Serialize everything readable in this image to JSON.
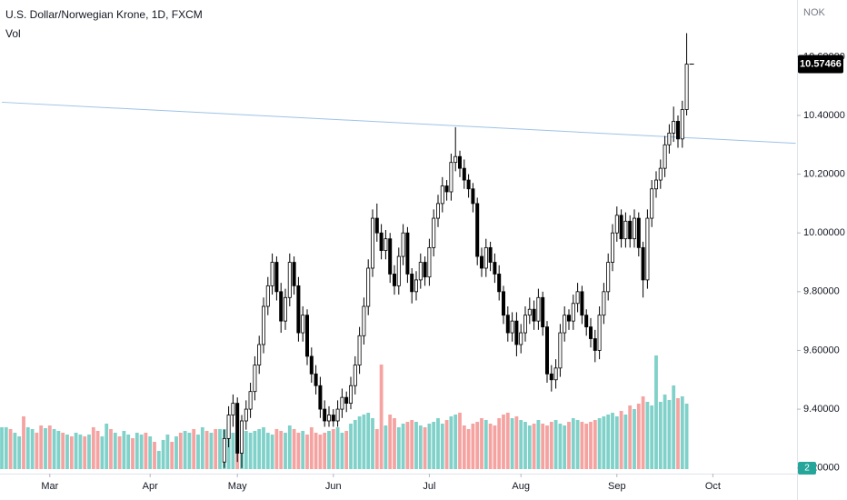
{
  "chart_data": {
    "type": "candlestick",
    "title": "U.S. Dollar/Norwegian Krone, 1D, FXCM",
    "volume_title": "Vol",
    "currency": "NOK",
    "volume_scale_label": "2",
    "ylim": [
      9.165,
      10.793
    ],
    "yticks": [
      {
        "value": 9.2,
        "label": "9.20000"
      },
      {
        "value": 9.4,
        "label": "9.40000"
      },
      {
        "value": 9.6,
        "label": "9.60000"
      },
      {
        "value": 9.8,
        "label": "9.80000"
      },
      {
        "value": 10.0,
        "label": "10.00000"
      },
      {
        "value": 10.2,
        "label": "10.20000"
      },
      {
        "value": 10.4,
        "label": "10.40000"
      },
      {
        "value": 10.6,
        "label": "10.60000"
      }
    ],
    "xticks": [
      {
        "value": 11,
        "label": "Mar"
      },
      {
        "value": 34,
        "label": "Apr"
      },
      {
        "value": 54,
        "label": "May"
      },
      {
        "value": 76,
        "label": "Jun"
      },
      {
        "value": 98,
        "label": "Jul"
      },
      {
        "value": 119,
        "label": "Aug"
      },
      {
        "value": 141,
        "label": "Sep"
      },
      {
        "value": 163,
        "label": "Oct"
      }
    ],
    "up_color": "#ffffff",
    "down_color": "#000000",
    "wick_color": "#000000",
    "trendline": {
      "color": "#9ec2e6",
      "start": [
        0,
        10.445
      ],
      "end": [
        182,
        10.305
      ]
    },
    "candles": [
      null,
      null,
      null,
      null,
      null,
      null,
      null,
      null,
      null,
      null,
      null,
      null,
      null,
      null,
      null,
      null,
      null,
      null,
      null,
      null,
      null,
      null,
      null,
      null,
      null,
      null,
      null,
      null,
      null,
      null,
      null,
      null,
      null,
      null,
      null,
      null,
      null,
      null,
      null,
      null,
      null,
      null,
      null,
      null,
      null,
      null,
      null,
      null,
      null,
      null,
      null,
      [
        9.22,
        9.33,
        9.2,
        9.3
      ],
      [
        9.3,
        9.41,
        9.27,
        9.38
      ],
      [
        9.38,
        9.45,
        9.34,
        9.42
      ],
      [
        9.42,
        9.44,
        9.22,
        9.25
      ],
      [
        9.25,
        9.38,
        9.2,
        9.36
      ],
      [
        9.36,
        9.43,
        9.33,
        9.4
      ],
      [
        9.4,
        9.49,
        9.37,
        9.46
      ],
      [
        9.46,
        9.58,
        9.43,
        9.55
      ],
      [
        9.55,
        9.65,
        9.52,
        9.62
      ],
      [
        9.62,
        9.78,
        9.59,
        9.75
      ],
      [
        9.75,
        9.85,
        9.72,
        9.82
      ],
      [
        9.82,
        9.93,
        9.79,
        9.9
      ],
      [
        9.9,
        9.92,
        9.77,
        9.8
      ],
      [
        9.8,
        9.83,
        9.66,
        9.7
      ],
      [
        9.7,
        9.81,
        9.67,
        9.78
      ],
      [
        9.78,
        9.93,
        9.75,
        9.9
      ],
      [
        9.9,
        9.92,
        9.79,
        9.82
      ],
      [
        9.82,
        9.85,
        9.63,
        9.66
      ],
      [
        9.66,
        9.75,
        9.63,
        9.72
      ],
      [
        9.72,
        9.74,
        9.55,
        9.58
      ],
      [
        9.58,
        9.61,
        9.49,
        9.52
      ],
      [
        9.52,
        9.55,
        9.45,
        9.48
      ],
      [
        9.48,
        9.51,
        9.37,
        9.4
      ],
      [
        9.4,
        9.43,
        9.34,
        9.36
      ],
      [
        9.36,
        9.41,
        9.34,
        9.38
      ],
      [
        9.38,
        9.4,
        9.34,
        9.36
      ],
      [
        9.36,
        9.43,
        9.34,
        9.4
      ],
      [
        9.4,
        9.47,
        9.37,
        9.44
      ],
      [
        9.44,
        9.46,
        9.39,
        9.42
      ],
      [
        9.42,
        9.51,
        9.4,
        9.48
      ],
      [
        9.48,
        9.58,
        9.45,
        9.55
      ],
      [
        9.55,
        9.68,
        9.52,
        9.65
      ],
      [
        9.65,
        9.78,
        9.62,
        9.75
      ],
      [
        9.75,
        9.91,
        9.72,
        9.88
      ],
      [
        9.88,
        10.08,
        9.85,
        10.05
      ],
      [
        10.05,
        10.1,
        9.97,
        10.0
      ],
      [
        10.0,
        10.03,
        9.91,
        9.94
      ],
      [
        9.94,
        10.01,
        9.91,
        9.98
      ],
      [
        9.98,
        10.0,
        9.83,
        9.86
      ],
      [
        9.86,
        9.89,
        9.79,
        9.82
      ],
      [
        9.82,
        9.95,
        9.79,
        9.92
      ],
      [
        9.92,
        10.03,
        9.89,
        10.0
      ],
      [
        10.0,
        10.02,
        9.83,
        9.86
      ],
      [
        9.86,
        9.88,
        9.76,
        9.8
      ],
      [
        9.8,
        9.87,
        9.77,
        9.84
      ],
      [
        9.84,
        9.93,
        9.81,
        9.9
      ],
      [
        9.9,
        9.92,
        9.82,
        9.85
      ],
      [
        9.85,
        9.98,
        9.82,
        9.95
      ],
      [
        9.95,
        10.08,
        9.92,
        10.05
      ],
      [
        10.05,
        10.13,
        10.02,
        10.1
      ],
      [
        10.1,
        10.19,
        10.07,
        10.16
      ],
      [
        10.16,
        10.18,
        10.11,
        10.14
      ],
      [
        10.14,
        10.27,
        10.11,
        10.24
      ],
      [
        10.24,
        10.36,
        10.21,
        10.26
      ],
      [
        10.26,
        10.28,
        10.19,
        10.22
      ],
      [
        10.22,
        10.25,
        10.15,
        10.18
      ],
      [
        10.18,
        10.2,
        10.12,
        10.15
      ],
      [
        10.15,
        10.17,
        10.07,
        10.1
      ],
      [
        10.1,
        10.12,
        9.89,
        9.92
      ],
      [
        9.92,
        9.95,
        9.85,
        9.88
      ],
      [
        9.88,
        9.98,
        9.85,
        9.95
      ],
      [
        9.95,
        9.97,
        9.87,
        9.9
      ],
      [
        9.9,
        9.93,
        9.83,
        9.86
      ],
      [
        9.86,
        9.89,
        9.77,
        9.8
      ],
      [
        9.8,
        9.82,
        9.69,
        9.72
      ],
      [
        9.72,
        9.75,
        9.63,
        9.66
      ],
      [
        9.66,
        9.73,
        9.63,
        9.7
      ],
      [
        9.7,
        9.73,
        9.58,
        9.62
      ],
      [
        9.62,
        9.69,
        9.59,
        9.66
      ],
      [
        9.66,
        9.75,
        9.63,
        9.72
      ],
      [
        9.72,
        9.78,
        9.69,
        9.74
      ],
      [
        9.74,
        9.77,
        9.67,
        9.7
      ],
      [
        9.7,
        9.81,
        9.67,
        9.78
      ],
      [
        9.78,
        9.8,
        9.65,
        9.68
      ],
      [
        9.68,
        9.7,
        9.49,
        9.52
      ],
      [
        9.52,
        9.55,
        9.46,
        9.5
      ],
      [
        9.5,
        9.57,
        9.47,
        9.54
      ],
      [
        9.54,
        9.69,
        9.51,
        9.66
      ],
      [
        9.66,
        9.75,
        9.63,
        9.72
      ],
      [
        9.72,
        9.74,
        9.67,
        9.7
      ],
      [
        9.7,
        9.79,
        9.67,
        9.76
      ],
      [
        9.76,
        9.83,
        9.73,
        9.8
      ],
      [
        9.8,
        9.82,
        9.69,
        9.72
      ],
      [
        9.72,
        9.74,
        9.65,
        9.68
      ],
      [
        9.68,
        9.71,
        9.61,
        9.64
      ],
      [
        9.64,
        9.67,
        9.56,
        9.6
      ],
      [
        9.6,
        9.75,
        9.57,
        9.72
      ],
      [
        9.72,
        9.83,
        9.69,
        9.8
      ],
      [
        9.8,
        9.93,
        9.77,
        9.9
      ],
      [
        9.9,
        10.03,
        9.87,
        10.0
      ],
      [
        10.0,
        10.09,
        9.97,
        10.06
      ],
      [
        10.06,
        10.08,
        9.95,
        9.98
      ],
      [
        9.98,
        10.07,
        9.95,
        10.04
      ],
      [
        10.04,
        10.06,
        9.95,
        9.98
      ],
      [
        9.98,
        10.08,
        9.95,
        10.05
      ],
      [
        10.05,
        10.07,
        9.92,
        9.95
      ],
      [
        9.95,
        9.97,
        9.78,
        9.84
      ],
      [
        9.84,
        10.08,
        9.81,
        10.05
      ],
      [
        10.05,
        10.18,
        10.02,
        10.15
      ],
      [
        10.15,
        10.21,
        10.12,
        10.18
      ],
      [
        10.18,
        10.25,
        10.15,
        10.22
      ],
      [
        10.22,
        10.33,
        10.19,
        10.3
      ],
      [
        10.3,
        10.37,
        10.27,
        10.34
      ],
      [
        10.34,
        10.43,
        10.31,
        10.38
      ],
      [
        10.38,
        10.4,
        10.29,
        10.32
      ],
      [
        10.32,
        10.45,
        10.29,
        10.42
      ],
      [
        10.42,
        10.68,
        10.4,
        10.57466
      ]
    ],
    "volume": {
      "up_color": "#7fd1c9",
      "down_color": "#f5a3a1",
      "vlim": [
        0,
        130
      ],
      "values": [
        46,
        46,
        44,
        40,
        36,
        58,
        46,
        44,
        40,
        48,
        45,
        48,
        44,
        42,
        40,
        38,
        36,
        40,
        38,
        36,
        38,
        46,
        42,
        36,
        50,
        44,
        40,
        36,
        42,
        38,
        34,
        40,
        38,
        40,
        36,
        30,
        20,
        32,
        38,
        30,
        36,
        40,
        42,
        40,
        44,
        38,
        46,
        42,
        40,
        44,
        44,
        44,
        50,
        40,
        60,
        36,
        42,
        40,
        42,
        44,
        46,
        40,
        38,
        44,
        42,
        40,
        48,
        44,
        40,
        42,
        38,
        46,
        40,
        38,
        40,
        42,
        44,
        46,
        40,
        42,
        50,
        54,
        58,
        60,
        62,
        56,
        44,
        115,
        48,
        60,
        56,
        46,
        50,
        52,
        54,
        52,
        48,
        46,
        50,
        52,
        56,
        50,
        54,
        58,
        60,
        62,
        48,
        44,
        50,
        52,
        56,
        54,
        50,
        48,
        56,
        60,
        62,
        56,
        58,
        54,
        52,
        48,
        50,
        54,
        50,
        48,
        52,
        54,
        50,
        48,
        52,
        56,
        54,
        52,
        50,
        52,
        54,
        56,
        58,
        60,
        62,
        58,
        64,
        60,
        70,
        66,
        72,
        80,
        74,
        70,
        125,
        74,
        82,
        76,
        92,
        78,
        80,
        72
      ],
      "up": [
        1,
        1,
        0,
        1,
        1,
        0,
        1,
        1,
        0,
        0,
        1,
        0,
        1,
        1,
        0,
        1,
        0,
        1,
        1,
        0,
        1,
        0,
        0,
        1,
        1,
        0,
        1,
        0,
        1,
        1,
        0,
        1,
        1,
        0,
        1,
        0,
        1,
        1,
        1,
        0,
        1,
        0,
        1,
        1,
        0,
        1,
        1,
        0,
        1,
        0,
        1,
        1,
        1,
        1,
        0,
        1,
        1,
        1,
        1,
        1,
        1,
        1,
        1,
        0,
        0,
        1,
        1,
        0,
        0,
        1,
        0,
        0,
        0,
        0,
        0,
        1,
        0,
        1,
        1,
        0,
        1,
        1,
        1,
        1,
        1,
        1,
        0,
        0,
        1,
        0,
        0,
        1,
        1,
        0,
        0,
        1,
        1,
        0,
        1,
        1,
        1,
        1,
        0,
        1,
        1,
        0,
        0,
        0,
        0,
        0,
        0,
        1,
        0,
        0,
        0,
        0,
        0,
        1,
        0,
        1,
        1,
        1,
        0,
        1,
        0,
        0,
        0,
        1,
        1,
        1,
        0,
        1,
        1,
        0,
        0,
        0,
        0,
        1,
        1,
        1,
        1,
        1,
        0,
        1,
        0,
        1,
        0,
        0,
        1,
        1,
        1,
        1,
        1,
        1,
        1,
        0,
        1,
        1
      ]
    }
  }
}
